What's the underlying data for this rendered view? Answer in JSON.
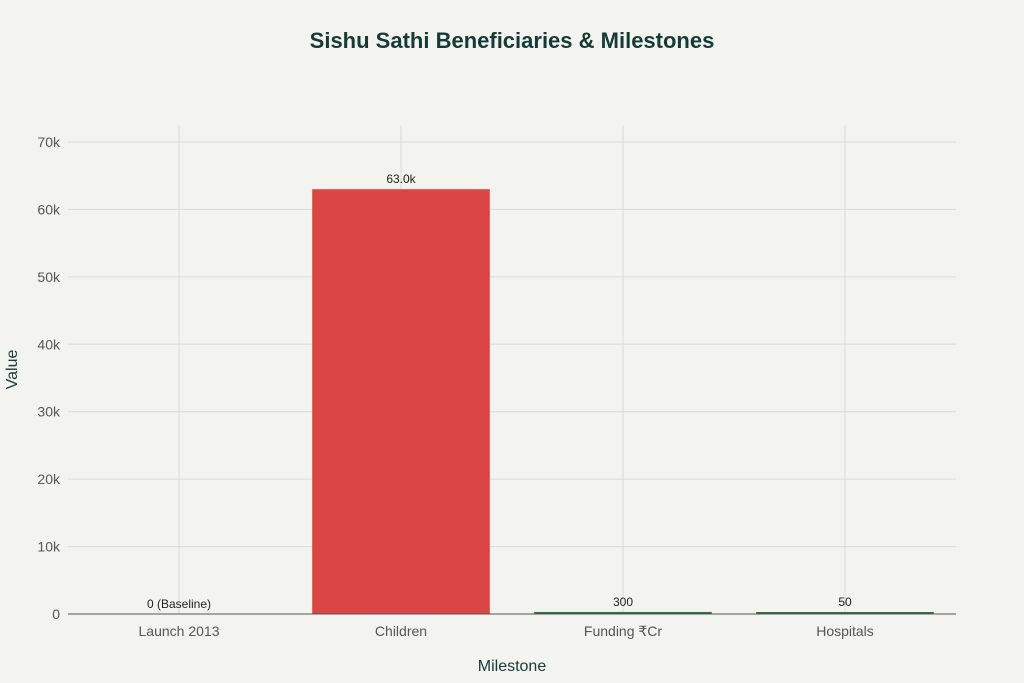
{
  "chart_data": {
    "type": "bar",
    "title": "Sishu Sathi Beneficiaries & Milestones",
    "xlabel": "Milestone",
    "ylabel": "Value",
    "categories": [
      "Launch 2013",
      "Children",
      "Funding ₹Cr",
      "Hospitals"
    ],
    "values": [
      0,
      63000,
      300,
      50
    ],
    "data_labels": [
      "0 (Baseline)",
      "63.0k",
      "300",
      "50"
    ],
    "bar_colors": [
      "#2e6f40",
      "#db4545",
      "#2e6f40",
      "#2e6f40"
    ],
    "ylim": [
      0,
      70000
    ],
    "yticks": [
      0,
      10000,
      20000,
      30000,
      40000,
      50000,
      60000,
      70000
    ],
    "ytick_labels": [
      "0",
      "10k",
      "20k",
      "30k",
      "40k",
      "50k",
      "60k",
      "70k"
    ],
    "grid": true,
    "legend": "none"
  }
}
